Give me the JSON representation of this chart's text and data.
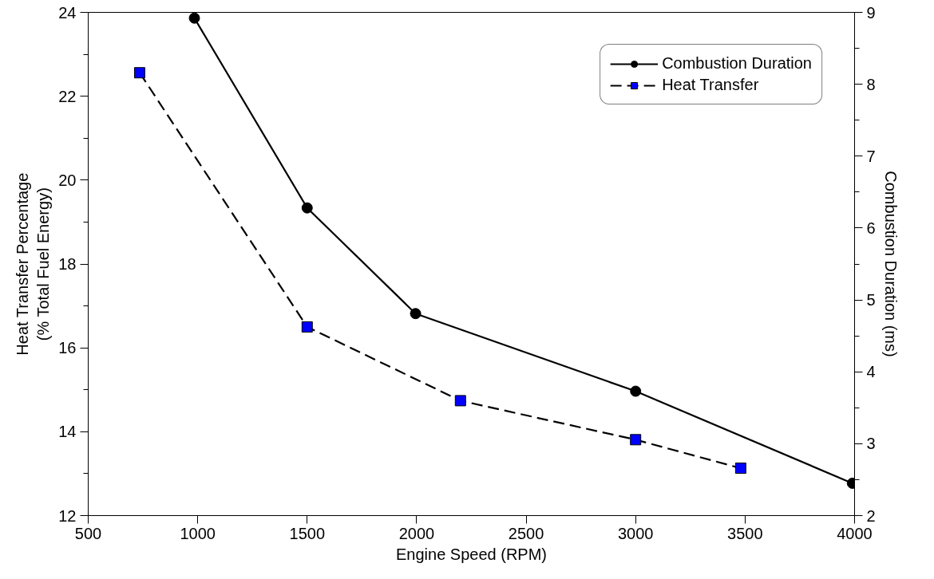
{
  "chart_data": {
    "type": "line",
    "xlabel": "Engine Speed (RPM)",
    "ylabel": "Heat Transfer Percentage\n(% Total Fuel Energy)",
    "y2label": "Combustion Duration (ms)",
    "xlim": [
      500,
      4000
    ],
    "xticks": [
      500,
      1000,
      1500,
      2000,
      2500,
      3000,
      3500,
      4000
    ],
    "ylim": [
      12,
      24
    ],
    "yticks": [
      12,
      14,
      16,
      18,
      20,
      22,
      24
    ],
    "y2lim": [
      2,
      9
    ],
    "y2ticks": [
      2,
      3,
      4,
      5,
      6,
      7,
      8,
      9
    ],
    "grid": false,
    "legend": "top right",
    "series": [
      {
        "name": "Combustion Duration",
        "color": "#000000",
        "axis": "y2",
        "marker": "circle",
        "line_style": "solid",
        "x": [
          985,
          1500,
          1995,
          3000,
          3990
        ],
        "values": [
          8.92,
          6.28,
          4.81,
          3.73,
          2.45
        ]
      },
      {
        "name": "Heat Transfer",
        "color": "#0000ff",
        "axis": "y",
        "marker": "square",
        "line_style": "dashed",
        "x": [
          735,
          1500,
          2200,
          3000,
          3480
        ],
        "values": [
          22.56,
          16.5,
          14.74,
          13.81,
          13.13
        ]
      }
    ]
  }
}
